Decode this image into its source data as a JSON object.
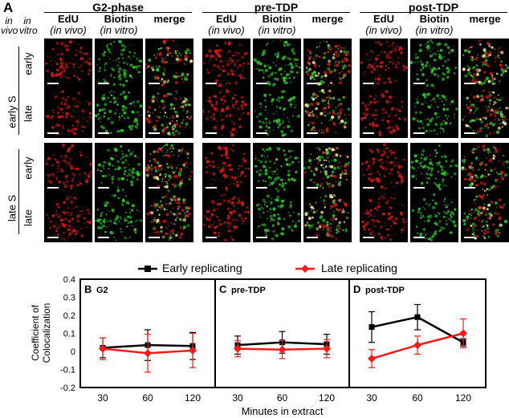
{
  "panel_letter": "A",
  "groups": [
    {
      "title": "G2-phase"
    },
    {
      "title": "pre-TDP"
    },
    {
      "title": "post-TDP"
    }
  ],
  "columns": [
    {
      "name": "EdU",
      "sub": "(in vivo)"
    },
    {
      "name": "Biotin",
      "sub": "(in vitro)"
    },
    {
      "name": "merge",
      "sub": ""
    }
  ],
  "side": {
    "in_vivo": "in vivo",
    "in_vitro": "in vitro",
    "early_s": "early S",
    "late_s": "late S"
  },
  "rows": [
    {
      "label": "early"
    },
    {
      "label": "late"
    },
    {
      "label": "early"
    },
    {
      "label": "late"
    }
  ],
  "legend": {
    "early": "Early replicating",
    "late": "Late replicating"
  },
  "colors": {
    "early": "#000000",
    "late": "#ff1a1a",
    "edu": "#d41818",
    "biotin": "#2fc92f"
  },
  "chart_data": [
    {
      "type": "line",
      "panel": "B",
      "title": "G2",
      "categories": [
        "30",
        "60",
        "120"
      ],
      "ylabel": "Coefficient of Colocalization",
      "xlabel": "",
      "ylim": [
        -0.2,
        0.4
      ],
      "yticks": [
        "0.4",
        "0.3",
        "0.2",
        "0.1",
        "0",
        "-0.1",
        "-0.2"
      ],
      "series": [
        {
          "name": "Early replicating",
          "values": [
            0.02,
            0.035,
            0.03
          ],
          "errors": [
            0.055,
            0.085,
            0.075
          ]
        },
        {
          "name": "Late replicating",
          "values": [
            0.015,
            -0.01,
            0.005
          ],
          "errors": [
            0.06,
            0.105,
            0.095
          ]
        }
      ]
    },
    {
      "type": "line",
      "panel": "C",
      "title": "pre-TDP",
      "categories": [
        "30",
        "60",
        "120"
      ],
      "xlabel": "Minutes in extract",
      "ylim": [
        -0.2,
        0.4
      ],
      "series": [
        {
          "name": "Early replicating",
          "values": [
            0.035,
            0.05,
            0.04
          ],
          "errors": [
            0.05,
            0.06,
            0.055
          ]
        },
        {
          "name": "Late replicating",
          "values": [
            0.015,
            0.01,
            0.015
          ],
          "errors": [
            0.045,
            0.05,
            0.05
          ]
        }
      ]
    },
    {
      "type": "line",
      "panel": "D",
      "title": "post-TDP",
      "categories": [
        "30",
        "60",
        "120"
      ],
      "xlabel": "",
      "ylim": [
        -0.2,
        0.4
      ],
      "series": [
        {
          "name": "Early replicating",
          "values": [
            0.135,
            0.19,
            0.05
          ],
          "errors": [
            0.085,
            0.07,
            0.02
          ]
        },
        {
          "name": "Late replicating",
          "values": [
            -0.04,
            0.035,
            0.1
          ],
          "errors": [
            0.05,
            0.05,
            0.08
          ]
        }
      ]
    }
  ]
}
